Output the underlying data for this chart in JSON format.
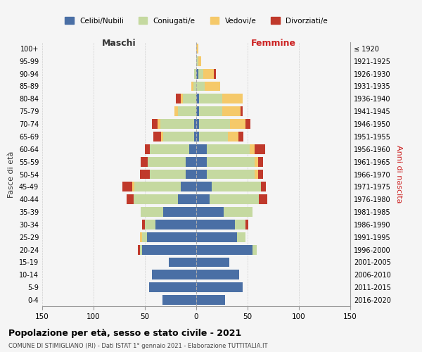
{
  "age_groups": [
    "0-4",
    "5-9",
    "10-14",
    "15-19",
    "20-24",
    "25-29",
    "30-34",
    "35-39",
    "40-44",
    "45-49",
    "50-54",
    "55-59",
    "60-64",
    "65-69",
    "70-74",
    "75-79",
    "80-84",
    "85-89",
    "90-94",
    "95-99",
    "100+"
  ],
  "birth_years": [
    "2016-2020",
    "2011-2015",
    "2006-2010",
    "2001-2005",
    "1996-2000",
    "1991-1995",
    "1986-1990",
    "1981-1985",
    "1976-1980",
    "1971-1975",
    "1966-1970",
    "1961-1965",
    "1956-1960",
    "1951-1955",
    "1946-1950",
    "1941-1945",
    "1936-1940",
    "1931-1935",
    "1926-1930",
    "1921-1925",
    "≤ 1920"
  ],
  "colors": {
    "celibi": "#4a6fa5",
    "coniugati": "#c5d9a0",
    "vedovi": "#f5c96a",
    "divorziati": "#c0392b"
  },
  "males": {
    "celibi": [
      33,
      46,
      43,
      27,
      53,
      48,
      40,
      32,
      18,
      15,
      10,
      10,
      7,
      2,
      2,
      0,
      0,
      0,
      0,
      0,
      0
    ],
    "coniugati": [
      0,
      0,
      0,
      0,
      2,
      5,
      10,
      22,
      43,
      45,
      35,
      37,
      38,
      30,
      33,
      18,
      13,
      3,
      2,
      0,
      0
    ],
    "vedovi": [
      0,
      0,
      0,
      0,
      0,
      2,
      0,
      0,
      0,
      2,
      0,
      0,
      0,
      2,
      3,
      3,
      2,
      2,
      0,
      0,
      0
    ],
    "divorziati": [
      0,
      0,
      0,
      0,
      2,
      0,
      3,
      0,
      7,
      10,
      10,
      7,
      5,
      8,
      5,
      0,
      5,
      0,
      0,
      0,
      0
    ]
  },
  "females": {
    "celibi": [
      28,
      45,
      42,
      32,
      55,
      40,
      38,
      27,
      13,
      15,
      10,
      10,
      10,
      3,
      3,
      3,
      3,
      0,
      2,
      0,
      0
    ],
    "coniugati": [
      0,
      0,
      0,
      0,
      4,
      8,
      10,
      28,
      48,
      48,
      47,
      47,
      42,
      28,
      30,
      22,
      22,
      8,
      5,
      2,
      0
    ],
    "vedovi": [
      0,
      0,
      0,
      0,
      0,
      0,
      0,
      0,
      0,
      0,
      3,
      3,
      5,
      10,
      15,
      18,
      20,
      15,
      10,
      3,
      2
    ],
    "divorziati": [
      0,
      0,
      0,
      0,
      0,
      0,
      3,
      0,
      8,
      5,
      5,
      5,
      10,
      5,
      5,
      2,
      0,
      0,
      2,
      0,
      0
    ]
  },
  "xlim": 150,
  "title": "Popolazione per età, sesso e stato civile - 2021",
  "subtitle": "COMUNE DI STIMIGLIANO (RI) - Dati ISTAT 1° gennaio 2021 - Elaborazione TUTTITALIA.IT",
  "xlabel_left": "Maschi",
  "xlabel_right": "Femmine",
  "ylabel_left": "Fasce di età",
  "ylabel_right": "Anni di nascita",
  "legend_labels": [
    "Celibi/Nubili",
    "Coniugati/e",
    "Vedovi/e",
    "Divorziati/e"
  ],
  "background_color": "#f5f5f5",
  "grid_color": "#cccccc"
}
